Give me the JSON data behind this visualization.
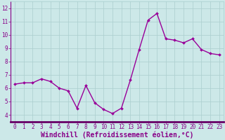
{
  "x": [
    0,
    1,
    2,
    3,
    4,
    5,
    6,
    7,
    8,
    9,
    10,
    11,
    12,
    13,
    14,
    15,
    16,
    17,
    18,
    19,
    20,
    21,
    22,
    23
  ],
  "y": [
    6.3,
    6.4,
    6.4,
    6.7,
    6.5,
    6.0,
    5.8,
    4.5,
    6.2,
    4.9,
    4.4,
    4.1,
    4.5,
    6.6,
    8.9,
    11.1,
    11.6,
    9.7,
    9.6,
    9.4,
    9.7,
    8.9,
    8.6,
    8.5
  ],
  "line_color": "#990099",
  "marker": "D",
  "marker_size": 2.0,
  "linewidth": 1.0,
  "xlim": [
    -0.5,
    23.5
  ],
  "ylim": [
    3.5,
    12.5
  ],
  "yticks": [
    4,
    5,
    6,
    7,
    8,
    9,
    10,
    11,
    12
  ],
  "xticks": [
    0,
    1,
    2,
    3,
    4,
    5,
    6,
    7,
    8,
    9,
    10,
    11,
    12,
    13,
    14,
    15,
    16,
    17,
    18,
    19,
    20,
    21,
    22,
    23
  ],
  "xlabel": "Windchill (Refroidissement éolien,°C)",
  "background_color": "#cce8e8",
  "grid_color": "#aacece",
  "axis_color": "#880088",
  "tick_color": "#880088",
  "label_color": "#880088",
  "tick_fontsize": 5.5,
  "xlabel_fontsize": 7.0,
  "grid_linewidth": 0.5,
  "spine_linewidth": 1.5,
  "bottom_spine_color": "#660066"
}
